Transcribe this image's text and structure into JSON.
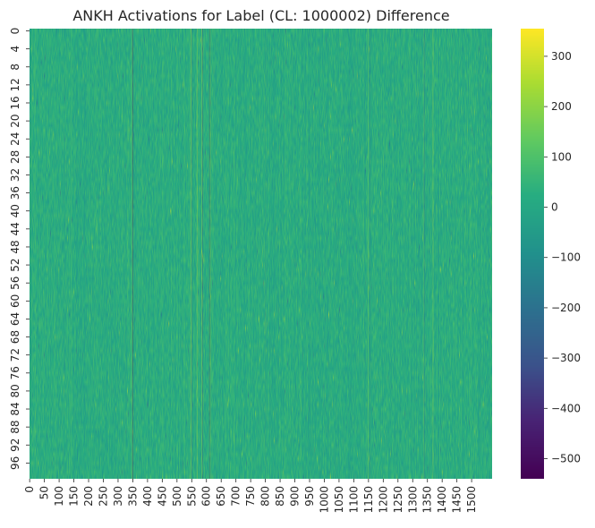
{
  "chart_data": {
    "type": "heatmap",
    "title": "ANKH Activations for Label (CL: 1000002) Difference",
    "xlabel": "",
    "ylabel": "",
    "n_rows": 100,
    "n_cols": 1570,
    "x_tick_labels": [
      "0",
      "50",
      "100",
      "150",
      "200",
      "250",
      "300",
      "350",
      "400",
      "450",
      "500",
      "550",
      "600",
      "650",
      "700",
      "750",
      "800",
      "850",
      "900",
      "950",
      "1000",
      "1050",
      "1100",
      "1150",
      "1200",
      "1250",
      "1300",
      "1350",
      "1400",
      "1450",
      "1500"
    ],
    "y_tick_labels": [
      "0",
      "4",
      "8",
      "12",
      "16",
      "20",
      "24",
      "28",
      "32",
      "36",
      "40",
      "44",
      "48",
      "52",
      "56",
      "60",
      "64",
      "68",
      "72",
      "76",
      "80",
      "84",
      "88",
      "92",
      "96"
    ],
    "colorbar": {
      "colormap": "viridis",
      "vmin": -540,
      "vmax": 355,
      "tick_labels": [
        "300",
        "200",
        "100",
        "0",
        "−100",
        "−200",
        "−300",
        "−400",
        "−500"
      ],
      "tick_values": [
        300,
        200,
        100,
        0,
        -100,
        -200,
        -300,
        -400,
        -500
      ]
    },
    "background_value_range": [
      -60,
      110
    ],
    "feature_columns": [
      {
        "col": 140,
        "value": 95
      },
      {
        "col": 346,
        "value": 240
      },
      {
        "col": 349,
        "value": -520
      },
      {
        "col": 547,
        "value": 230
      },
      {
        "col": 552,
        "value": -320
      },
      {
        "col": 570,
        "value": 270
      },
      {
        "col": 584,
        "value": 330
      },
      {
        "col": 587,
        "value": -400
      },
      {
        "col": 610,
        "value": -480
      },
      {
        "col": 613,
        "value": 230
      },
      {
        "col": 800,
        "value": -130
      },
      {
        "col": 1150,
        "value": 190
      },
      {
        "col": 1155,
        "value": -200
      },
      {
        "col": 1337,
        "value": 210
      },
      {
        "col": 1340,
        "value": -240
      },
      {
        "col": 1369,
        "value": 260
      }
    ]
  }
}
